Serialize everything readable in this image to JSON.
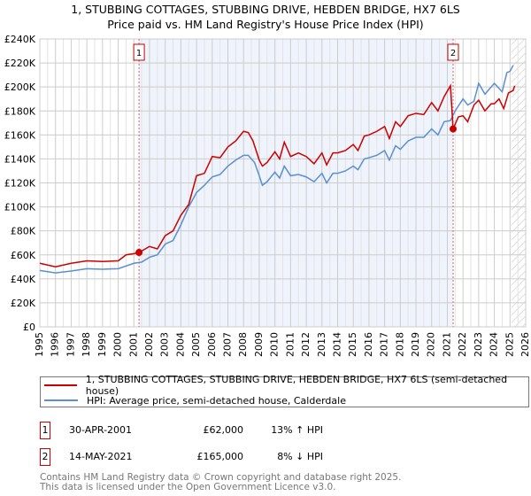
{
  "chart_data": {
    "type": "line",
    "title": "1, STUBBING COTTAGES, STUBBING DRIVE, HEBDEN BRIDGE, HX7 6LS",
    "subtitle": "Price paid vs. HM Land Registry's House Price Index (HPI)",
    "xlim": [
      1995,
      2026
    ],
    "ylim": [
      0,
      240000
    ],
    "x_ticks": [
      "1995",
      "1996",
      "1997",
      "1998",
      "1999",
      "2000",
      "2001",
      "2002",
      "2003",
      "2004",
      "2005",
      "2006",
      "2007",
      "2008",
      "2009",
      "2010",
      "2011",
      "2012",
      "2013",
      "2014",
      "2015",
      "2016",
      "2017",
      "2018",
      "2019",
      "2020",
      "2021",
      "2022",
      "2023",
      "2024",
      "2025",
      "2026"
    ],
    "y_ticks": [
      "£0",
      "£20K",
      "£40K",
      "£60K",
      "£80K",
      "£100K",
      "£120K",
      "£140K",
      "£160K",
      "£180K",
      "£200K",
      "£220K",
      "£240K"
    ],
    "grid": true,
    "shaded_range": [
      2001.33,
      2021.37
    ],
    "forecast_hatch_from": 2025.1,
    "series": [
      {
        "name": "1, STUBBING COTTAGES, STUBBING DRIVE, HEBDEN BRIDGE, HX7 6LS (semi-detached house)",
        "color": "#cc0000",
        "x": [
          1995,
          1996,
          1997,
          1998,
          1999,
          2000,
          2000.5,
          2001,
          2001.33,
          2002,
          2002.5,
          2003,
          2003.5,
          2004,
          2004.5,
          2005,
          2005.5,
          2006,
          2006.5,
          2007,
          2007.5,
          2008,
          2008.3,
          2008.6,
          2009,
          2009.2,
          2009.5,
          2010,
          2010.3,
          2010.6,
          2011,
          2011.5,
          2012,
          2012.5,
          2013,
          2013.3,
          2013.7,
          2014,
          2014.5,
          2015,
          2015.3,
          2015.7,
          2016,
          2016.5,
          2017,
          2017.3,
          2017.7,
          2018,
          2018.5,
          2019,
          2019.5,
          2020,
          2020.4,
          2020.8,
          2021.2,
          2021.37,
          2021.7,
          2022,
          2022.3,
          2022.7,
          2023,
          2023.4,
          2023.8,
          2024,
          2024.3,
          2024.6,
          2024.9,
          2025.2,
          2025.3
        ],
        "y": [
          53,
          50,
          53,
          55,
          54.5,
          55,
          60,
          61,
          62,
          67,
          65,
          76,
          80,
          93,
          102,
          126,
          128,
          142,
          141,
          150,
          155,
          163,
          162,
          155,
          139,
          134,
          137,
          146,
          140,
          154,
          142,
          145,
          142,
          136,
          145,
          135,
          145,
          145,
          147,
          152,
          147,
          159,
          160,
          163,
          167,
          157,
          171,
          167,
          176,
          178,
          177,
          187,
          180,
          192,
          201,
          165,
          175,
          176,
          171,
          185,
          189,
          180,
          186,
          186,
          190,
          182,
          195,
          197,
          201
        ]
      },
      {
        "name": "HPI: Average price, semi-detached house, Calderdale",
        "color": "#5b8fd0",
        "x": [
          1995,
          1996,
          1997,
          1998,
          1999,
          2000,
          2001,
          2001.5,
          2002,
          2002.5,
          2003,
          2003.5,
          2004,
          2004.5,
          2005,
          2005.5,
          2006,
          2006.5,
          2007,
          2007.5,
          2008,
          2008.3,
          2008.7,
          2009,
          2009.2,
          2009.5,
          2010,
          2010.3,
          2010.6,
          2011,
          2011.5,
          2012,
          2012.5,
          2013,
          2013.3,
          2013.7,
          2014,
          2014.5,
          2015,
          2015.3,
          2015.7,
          2016,
          2016.5,
          2017,
          2017.3,
          2017.7,
          2018,
          2018.5,
          2019,
          2019.5,
          2020,
          2020.4,
          2020.8,
          2021.2,
          2021.5,
          2022,
          2022.3,
          2022.7,
          2023,
          2023.4,
          2023.8,
          2024,
          2024.5,
          2024.8,
          2025,
          2025.2
        ],
        "y": [
          47,
          45,
          46.5,
          48.5,
          48,
          48.5,
          53,
          54,
          58,
          60,
          69,
          72,
          85,
          100,
          112,
          118,
          125,
          127,
          134,
          139,
          143,
          143,
          137,
          126,
          118,
          121,
          129,
          124,
          134,
          126,
          127,
          125,
          121,
          128,
          120,
          128,
          128,
          130,
          134,
          131,
          140,
          141,
          143,
          147,
          139,
          151,
          148,
          155,
          158,
          158,
          165,
          160,
          171,
          172,
          180,
          190,
          185,
          188,
          203,
          194,
          200,
          203,
          196,
          212,
          213,
          218
        ]
      }
    ],
    "markers": [
      {
        "label": "1",
        "x": 2001.33,
        "y": 62
      },
      {
        "label": "2",
        "x": 2021.37,
        "y": 165
      }
    ]
  },
  "legend": {
    "items": [
      "1, STUBBING COTTAGES, STUBBING DRIVE, HEBDEN BRIDGE, HX7 6LS (semi-detached house)",
      "HPI: Average price, semi-detached house, Calderdale"
    ]
  },
  "sales": [
    {
      "num": "1",
      "date": "30-APR-2001",
      "price": "£62,000",
      "hpi": "13% ↑ HPI"
    },
    {
      "num": "2",
      "date": "14-MAY-2021",
      "price": "£165,000",
      "hpi": "8% ↓ HPI"
    }
  ],
  "footer": {
    "line1": "Contains HM Land Registry data © Crown copyright and database right 2025.",
    "line2": "This data is licensed under the Open Government Licence v3.0."
  }
}
